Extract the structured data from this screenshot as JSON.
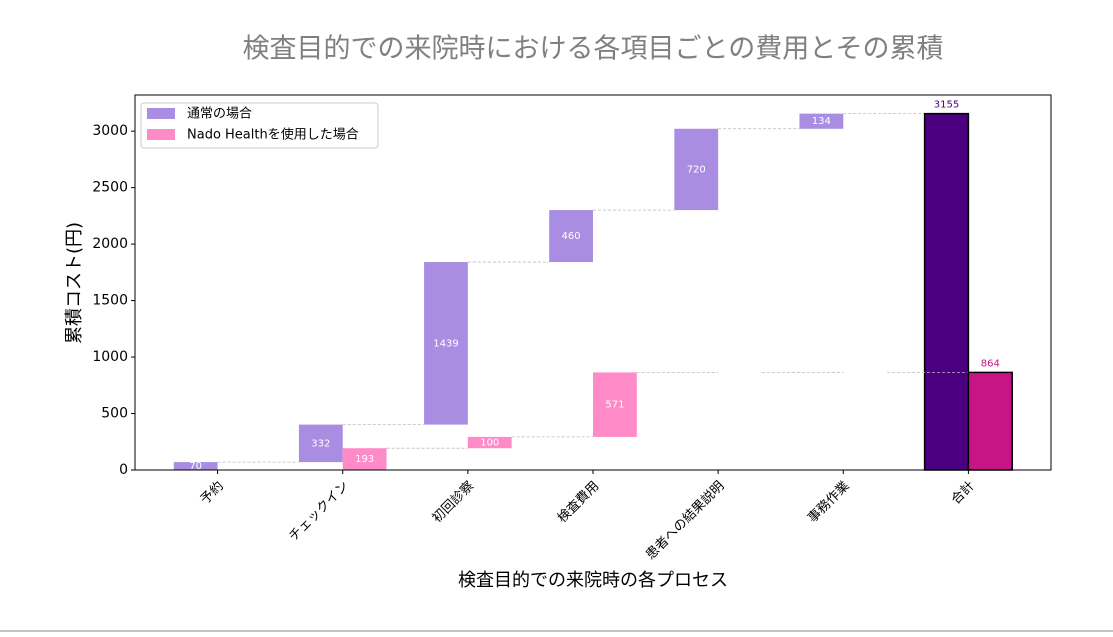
{
  "chart_data": {
    "type": "waterfall",
    "title": "検査目的での来院時における各項目ごとの費用とその累積",
    "xlabel": "検査目的での来院時の各プロセス",
    "ylabel": "累積コスト(円)",
    "categories": [
      "予約",
      "チェックイン",
      "初回診察",
      "検査費用",
      "患者への結果説明",
      "事務作業"
    ],
    "total_category": "合計",
    "series": [
      {
        "name": "通常の場合",
        "color": "#a98de3",
        "total_color": "#4b0082",
        "values": [
          70,
          332,
          1439,
          460,
          720,
          134
        ],
        "total": 3155
      },
      {
        "name": "Nado Healthを使用した場合",
        "color": "#ff8ac8",
        "total_color": "#c71585",
        "values": [
          0,
          193,
          100,
          571,
          0,
          0
        ],
        "total": 864
      }
    ],
    "ylim": [
      0,
      3320
    ],
    "yticks": [
      0,
      500,
      1000,
      1500,
      2000,
      2500,
      3000
    ],
    "legend": "upper left"
  }
}
